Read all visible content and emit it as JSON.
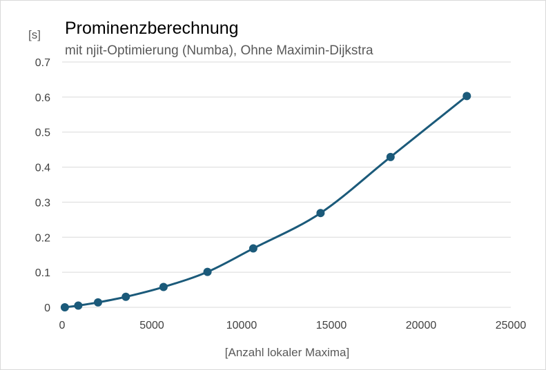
{
  "chart_data": {
    "type": "line",
    "title": "Prominenzberechnung",
    "subtitle": "mit njit-Optimierung (Numba),  Ohne Maximin-Dijkstra",
    "xlabel": "[Anzahl lokaler Maxima]",
    "ylabel": "[s]",
    "xlim": [
      0,
      25000
    ],
    "ylim": [
      0,
      0.7
    ],
    "x_ticks": [
      "0",
      "5000",
      "10000",
      "15000",
      "20000",
      "25000"
    ],
    "y_ticks": [
      "0",
      "0.1",
      "0.2",
      "0.3",
      "0.4",
      "0.5",
      "0.6",
      "0.7"
    ],
    "grid": true,
    "smooth": true,
    "color": "#1b5a7a",
    "series": [
      {
        "x": [
          150,
          900,
          2000,
          3550,
          5650,
          8100,
          10650,
          14400,
          18300,
          22550
        ],
        "y": [
          0.0,
          0.005,
          0.014,
          0.03,
          0.058,
          0.101,
          0.168,
          0.269,
          0.429,
          0.603
        ]
      }
    ]
  }
}
